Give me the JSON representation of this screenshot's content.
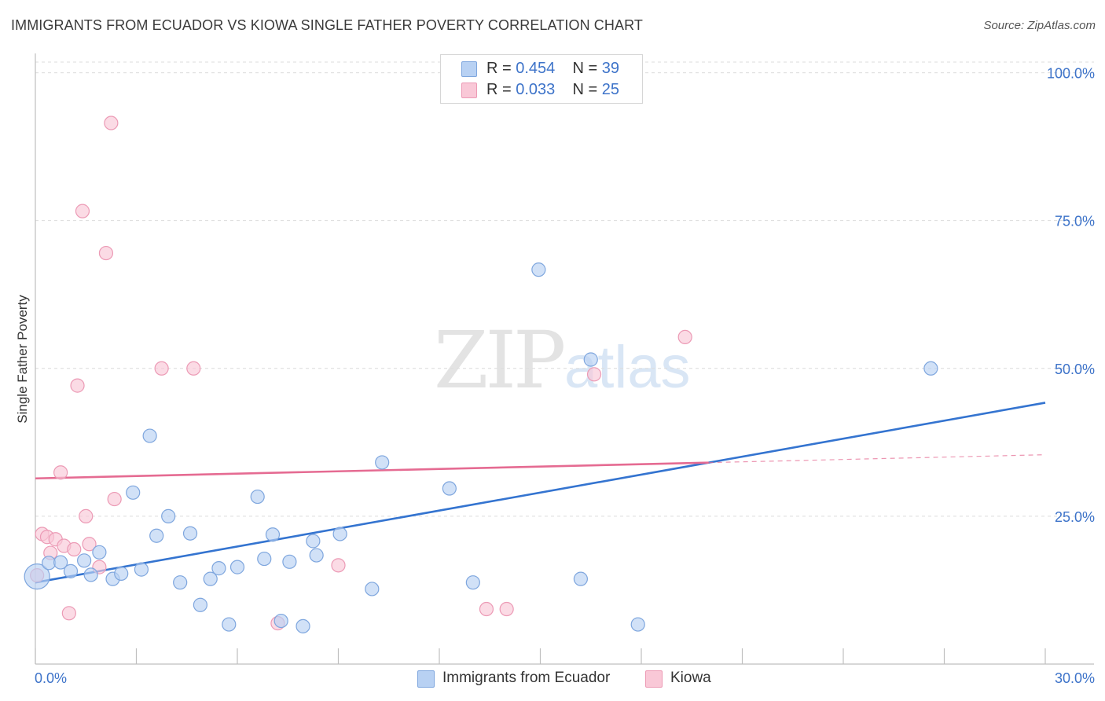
{
  "title": "IMMIGRANTS FROM ECUADOR VS KIOWA SINGLE FATHER POVERTY CORRELATION CHART",
  "source": "Source: ZipAtlas.com",
  "watermark": {
    "zip": "ZIP",
    "atlas": "atlas"
  },
  "legend_top": [
    {
      "r_label": "R = ",
      "r_value": "0.454",
      "n_label": "N = ",
      "n_value": "39"
    },
    {
      "r_label": "R = ",
      "r_value": "0.033",
      "n_label": "N = ",
      "n_value": "25"
    }
  ],
  "legend_bottom": [
    {
      "label": "Immigrants from Ecuador"
    },
    {
      "label": "Kiowa"
    }
  ],
  "colors": {
    "blue_fill": "#b8d1f3",
    "blue_stroke": "#7ea6de",
    "blue_line": "#3474d0",
    "pink_fill": "#f9c8d7",
    "pink_stroke": "#ec9ab5",
    "pink_line": "#e56b92",
    "tick_label": "#3d73c9",
    "grid": "#dcdcdc"
  },
  "chart_data": {
    "type": "scatter",
    "title": "IMMIGRANTS FROM ECUADOR VS KIOWA SINGLE FATHER POVERTY CORRELATION CHART",
    "xlabel": "",
    "ylabel": "Single Father Poverty",
    "xlim": [
      0,
      30
    ],
    "ylim": [
      0,
      103
    ],
    "x_tick_labels": [
      {
        "value": 0,
        "label": "0.0%"
      },
      {
        "value": 30,
        "label": "30.0%"
      }
    ],
    "y_tick_labels": [
      {
        "value": 25,
        "label": "25.0%"
      },
      {
        "value": 50,
        "label": "50.0%"
      },
      {
        "value": 75,
        "label": "75.0%"
      },
      {
        "value": 100,
        "label": "100.0%"
      }
    ],
    "series": [
      {
        "name": "Immigrants from Ecuador",
        "color": "blue",
        "r": 0.454,
        "n": 39,
        "trend": {
          "x": [
            0,
            30
          ],
          "y": [
            13.8,
            44.2
          ],
          "dashed_from": null
        },
        "points": [
          {
            "x": 0.05,
            "y": 14.8,
            "big": true
          },
          {
            "x": 0.4,
            "y": 17.1
          },
          {
            "x": 0.75,
            "y": 17.2
          },
          {
            "x": 1.05,
            "y": 15.7
          },
          {
            "x": 1.45,
            "y": 17.5
          },
          {
            "x": 1.65,
            "y": 15.1
          },
          {
            "x": 1.9,
            "y": 18.9
          },
          {
            "x": 2.3,
            "y": 14.4
          },
          {
            "x": 2.55,
            "y": 15.3
          },
          {
            "x": 2.9,
            "y": 29.0
          },
          {
            "x": 3.15,
            "y": 16.0
          },
          {
            "x": 3.4,
            "y": 38.6
          },
          {
            "x": 3.6,
            "y": 21.7
          },
          {
            "x": 3.95,
            "y": 25.0
          },
          {
            "x": 4.3,
            "y": 13.8
          },
          {
            "x": 4.6,
            "y": 22.1
          },
          {
            "x": 4.9,
            "y": 10.0
          },
          {
            "x": 5.2,
            "y": 14.4
          },
          {
            "x": 5.45,
            "y": 16.2
          },
          {
            "x": 5.75,
            "y": 6.7
          },
          {
            "x": 6.0,
            "y": 16.4
          },
          {
            "x": 6.6,
            "y": 28.3
          },
          {
            "x": 6.8,
            "y": 17.8
          },
          {
            "x": 7.05,
            "y": 21.9
          },
          {
            "x": 7.3,
            "y": 7.3
          },
          {
            "x": 7.55,
            "y": 17.3
          },
          {
            "x": 7.95,
            "y": 6.4
          },
          {
            "x": 8.25,
            "y": 20.8
          },
          {
            "x": 8.35,
            "y": 18.4
          },
          {
            "x": 9.05,
            "y": 22.0
          },
          {
            "x": 10.0,
            "y": 12.7
          },
          {
            "x": 10.3,
            "y": 34.1
          },
          {
            "x": 12.3,
            "y": 29.7
          },
          {
            "x": 13.0,
            "y": 13.8
          },
          {
            "x": 14.95,
            "y": 66.7
          },
          {
            "x": 16.2,
            "y": 14.4
          },
          {
            "x": 16.5,
            "y": 51.5
          },
          {
            "x": 17.9,
            "y": 6.7
          },
          {
            "x": 26.6,
            "y": 50.0
          }
        ]
      },
      {
        "name": "Kiowa",
        "color": "pink",
        "r": 0.033,
        "n": 25,
        "trend": {
          "x": [
            0,
            30
          ],
          "y": [
            31.4,
            35.4
          ],
          "dashed_from": 20
        },
        "points": [
          {
            "x": 0.05,
            "y": 15.0
          },
          {
            "x": 0.2,
            "y": 22.0
          },
          {
            "x": 0.35,
            "y": 21.5
          },
          {
            "x": 0.45,
            "y": 18.8
          },
          {
            "x": 0.6,
            "y": 21.1
          },
          {
            "x": 0.75,
            "y": 32.4
          },
          {
            "x": 0.85,
            "y": 20.0
          },
          {
            "x": 1.0,
            "y": 8.6
          },
          {
            "x": 1.15,
            "y": 19.4
          },
          {
            "x": 1.25,
            "y": 47.1
          },
          {
            "x": 1.4,
            "y": 76.6
          },
          {
            "x": 1.5,
            "y": 25.0
          },
          {
            "x": 1.6,
            "y": 20.3
          },
          {
            "x": 1.9,
            "y": 16.4
          },
          {
            "x": 2.1,
            "y": 69.5
          },
          {
            "x": 2.25,
            "y": 91.5
          },
          {
            "x": 2.35,
            "y": 27.9
          },
          {
            "x": 3.75,
            "y": 50.0
          },
          {
            "x": 4.7,
            "y": 50.0
          },
          {
            "x": 7.2,
            "y": 6.9
          },
          {
            "x": 9.0,
            "y": 16.7
          },
          {
            "x": 13.4,
            "y": 9.3
          },
          {
            "x": 14.0,
            "y": 9.3
          },
          {
            "x": 16.6,
            "y": 49.0
          },
          {
            "x": 19.3,
            "y": 55.3
          }
        ]
      }
    ]
  }
}
